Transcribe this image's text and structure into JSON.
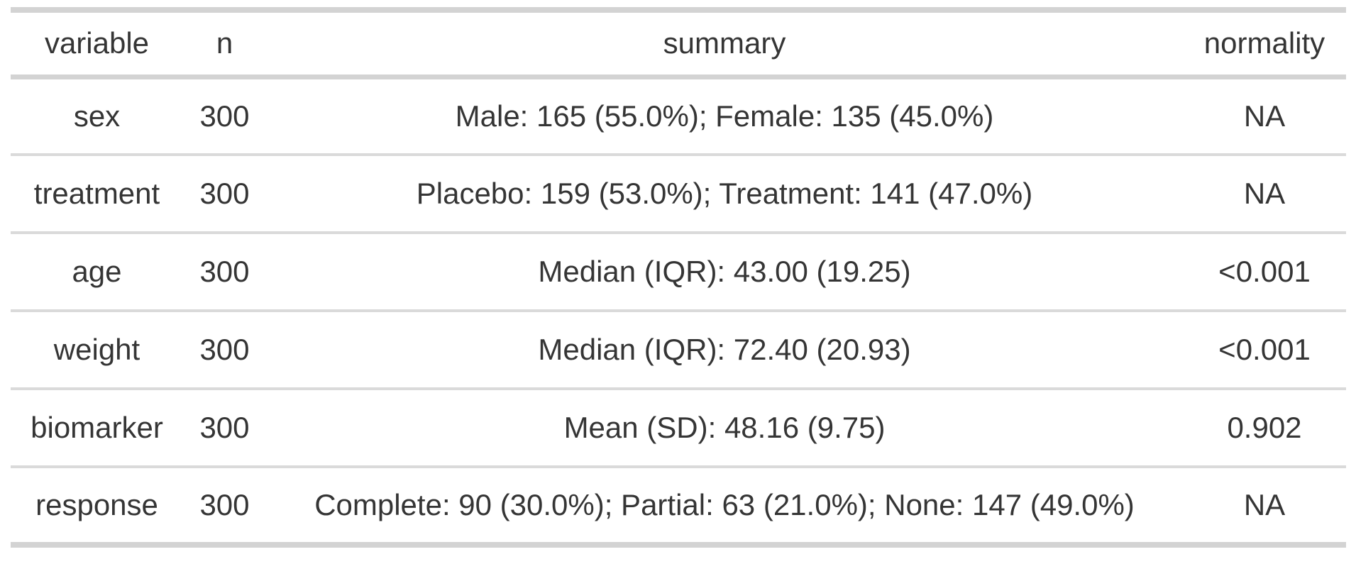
{
  "chart_data": {
    "type": "table",
    "title": "",
    "columns": [
      "variable",
      "n",
      "summary",
      "normality"
    ],
    "rows": [
      [
        "sex",
        "300",
        "Male: 165 (55.0%); Female: 135 (45.0%)",
        "NA"
      ],
      [
        "treatment",
        "300",
        "Placebo: 159 (53.0%); Treatment: 141 (47.0%)",
        "NA"
      ],
      [
        "age",
        "300",
        "Median (IQR): 43.00 (19.25)",
        "<0.001"
      ],
      [
        "weight",
        "300",
        "Median (IQR): 72.40 (20.93)",
        "<0.001"
      ],
      [
        "biomarker",
        "300",
        "Mean (SD): 48.16 (9.75)",
        "0.902"
      ],
      [
        "response",
        "300",
        "Complete: 90 (30.0%); Partial: 63 (21.0%); None: 147 (49.0%)",
        "NA"
      ]
    ],
    "layout": {
      "header_position": "top",
      "column_alignment": "center",
      "grid": "horizontal-rules-only",
      "legend": "none"
    }
  },
  "colors": {
    "background": "#ffffff",
    "text": "#353535",
    "border_heavy": "#d3d3d3",
    "border_light": "#dadada"
  }
}
